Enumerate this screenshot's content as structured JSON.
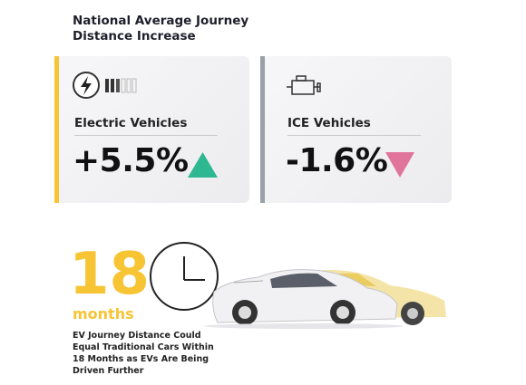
{
  "title": "National Average Journey Distance Increase",
  "cards": [
    {
      "label": "Electric Vehicles",
      "value": "+5.5%"
    },
    {
      "label": "ICE Vehicles",
      "value": "-1.6%"
    }
  ],
  "highlight": {
    "number": "18",
    "unit": "months"
  },
  "caption": "EV Journey Distance Could Equal Traditional Cars Within 18 Months as EVs Are Being Driven Further"
}
